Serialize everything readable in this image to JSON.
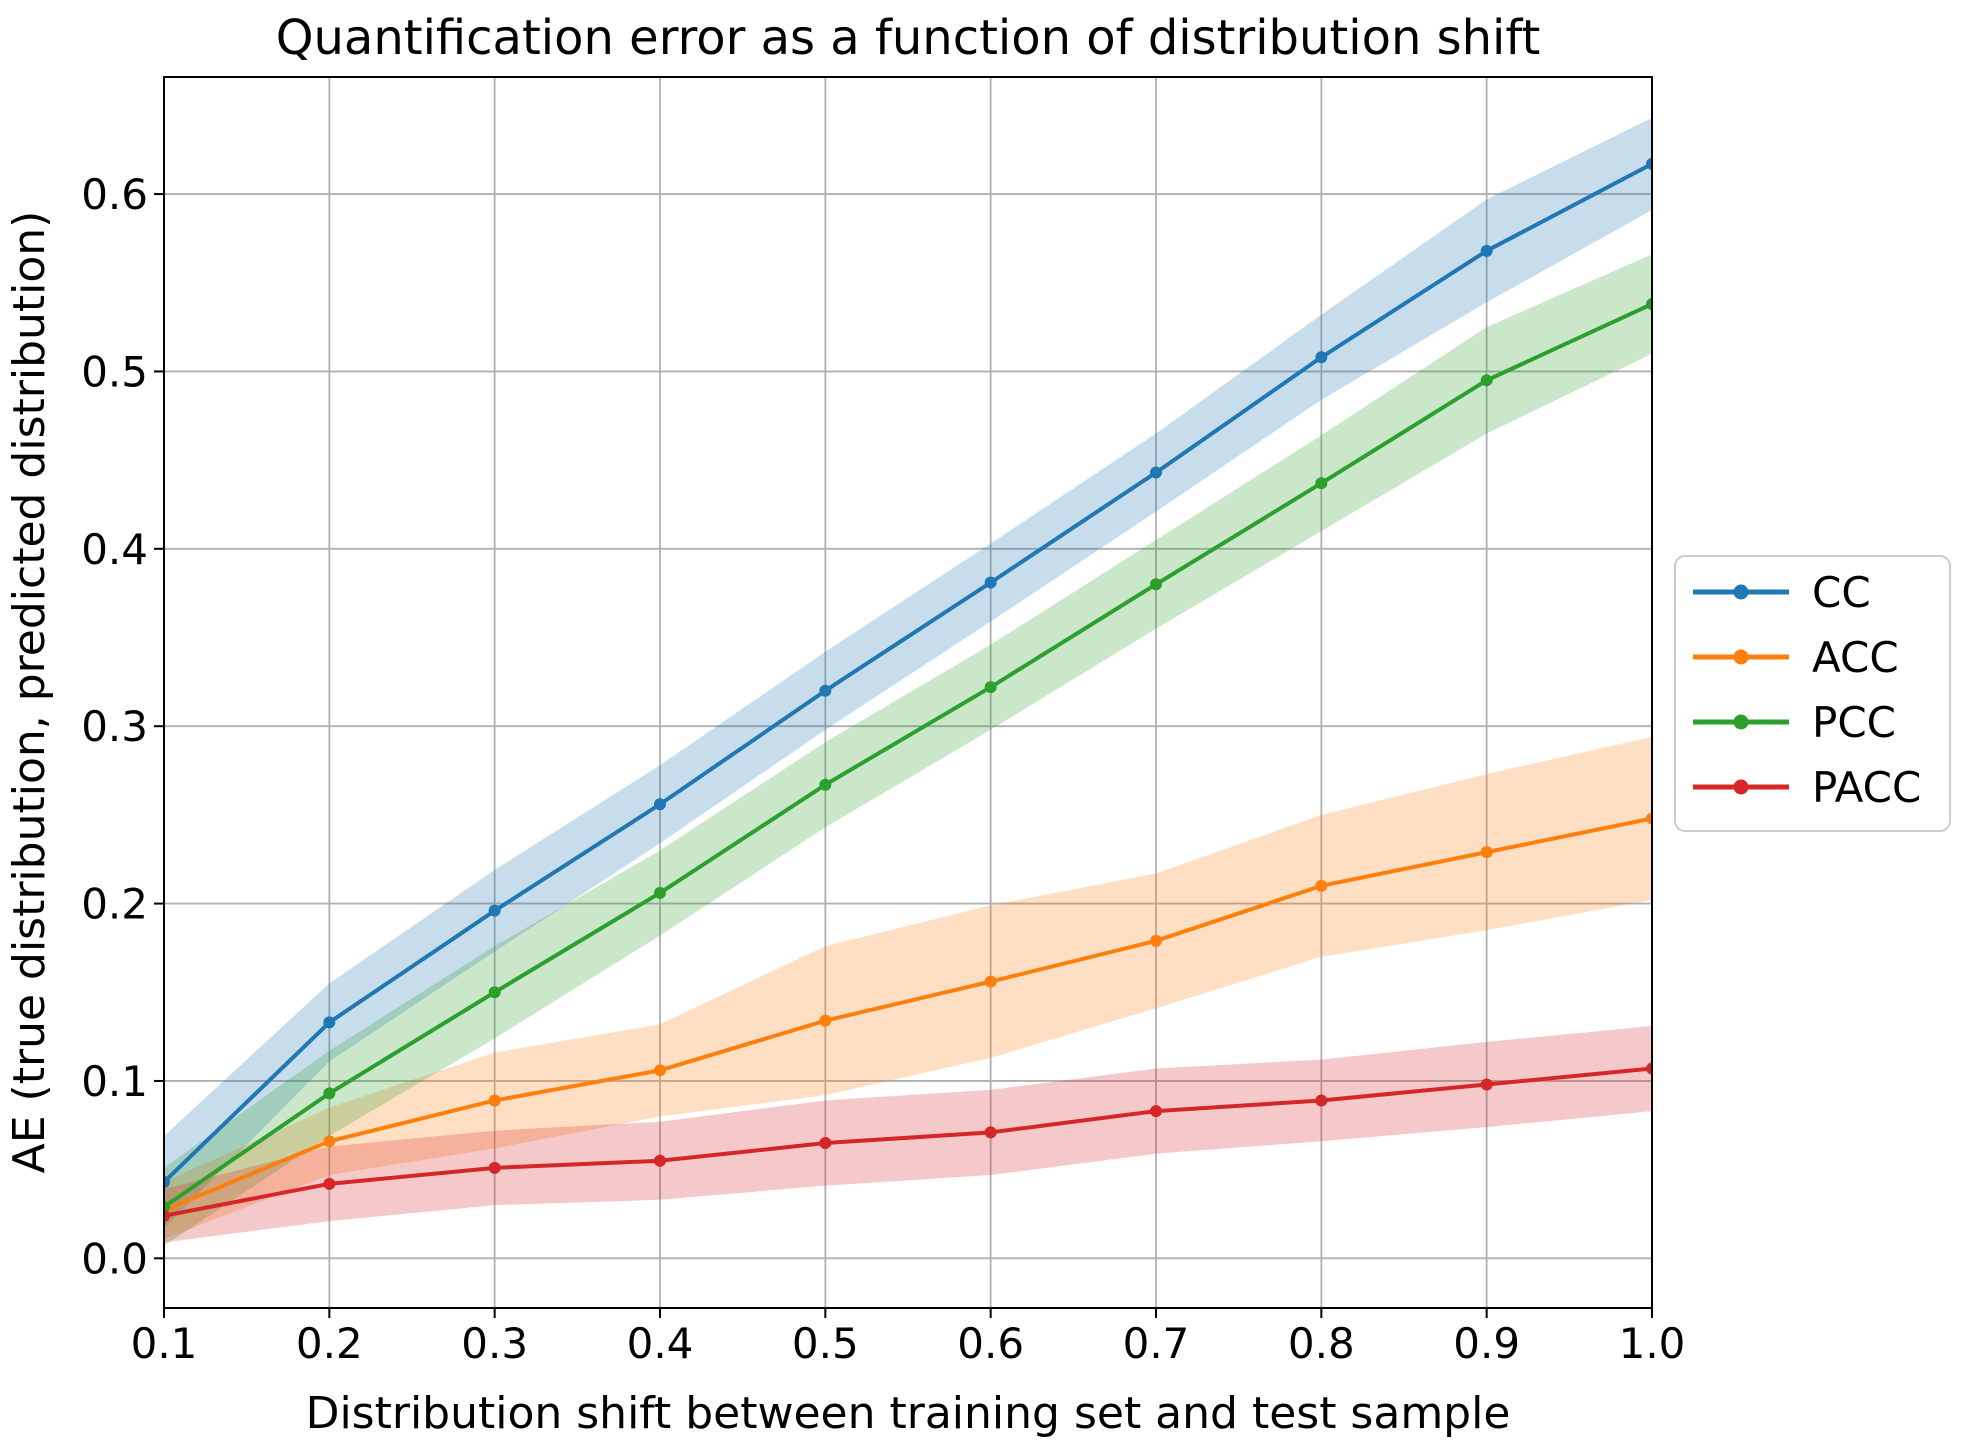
{
  "chart_data": {
    "type": "line",
    "title": "Quantification error as a function of distribution shift",
    "xlabel": "Distribution shift between training set and test sample",
    "ylabel": "AE (true distribution, predicted distribution)",
    "x": [
      0.1,
      0.2,
      0.3,
      0.4,
      0.5,
      0.6,
      0.7,
      0.8,
      0.9,
      1.0
    ],
    "x_tick_labels": [
      "0.1",
      "0.2",
      "0.3",
      "0.4",
      "0.5",
      "0.6",
      "0.7",
      "0.8",
      "0.9",
      "1.0"
    ],
    "y_ticks": [
      0.0,
      0.1,
      0.2,
      0.3,
      0.4,
      0.5,
      0.6
    ],
    "y_tick_labels": [
      "0.0",
      "0.1",
      "0.2",
      "0.3",
      "0.4",
      "0.5",
      "0.6"
    ],
    "xlim": [
      0.1,
      1.0
    ],
    "ylim": [
      -0.028,
      0.666
    ],
    "grid": true,
    "legend_position": "outside-right",
    "band_alpha": 0.25,
    "series": [
      {
        "name": "CC",
        "color": "#1f77b4",
        "values": [
          0.043,
          0.133,
          0.196,
          0.256,
          0.32,
          0.381,
          0.443,
          0.508,
          0.568,
          0.617
        ],
        "band_halfwidth": [
          0.026,
          0.022,
          0.023,
          0.022,
          0.022,
          0.022,
          0.022,
          0.024,
          0.029,
          0.026
        ]
      },
      {
        "name": "ACC",
        "color": "#ff7f0e",
        "values": [
          0.027,
          0.066,
          0.089,
          0.106,
          0.134,
          0.156,
          0.179,
          0.21,
          0.229,
          0.248
        ],
        "band_halfwidth": [
          0.016,
          0.019,
          0.027,
          0.026,
          0.042,
          0.043,
          0.038,
          0.04,
          0.044,
          0.046
        ]
      },
      {
        "name": "PCC",
        "color": "#2ca02c",
        "values": [
          0.029,
          0.093,
          0.15,
          0.206,
          0.267,
          0.322,
          0.38,
          0.437,
          0.495,
          0.538
        ],
        "band_halfwidth": [
          0.022,
          0.024,
          0.026,
          0.024,
          0.024,
          0.024,
          0.025,
          0.027,
          0.03,
          0.028
        ]
      },
      {
        "name": "PACC",
        "color": "#d62728",
        "values": [
          0.024,
          0.042,
          0.051,
          0.055,
          0.065,
          0.071,
          0.083,
          0.089,
          0.098,
          0.107
        ],
        "band_halfwidth": [
          0.015,
          0.021,
          0.021,
          0.022,
          0.024,
          0.024,
          0.024,
          0.023,
          0.024,
          0.024
        ]
      }
    ],
    "colors": {
      "grid": "#b0b0b0",
      "spine": "#000000",
      "legend_border": "#cccccc",
      "background": "#ffffff"
    }
  }
}
